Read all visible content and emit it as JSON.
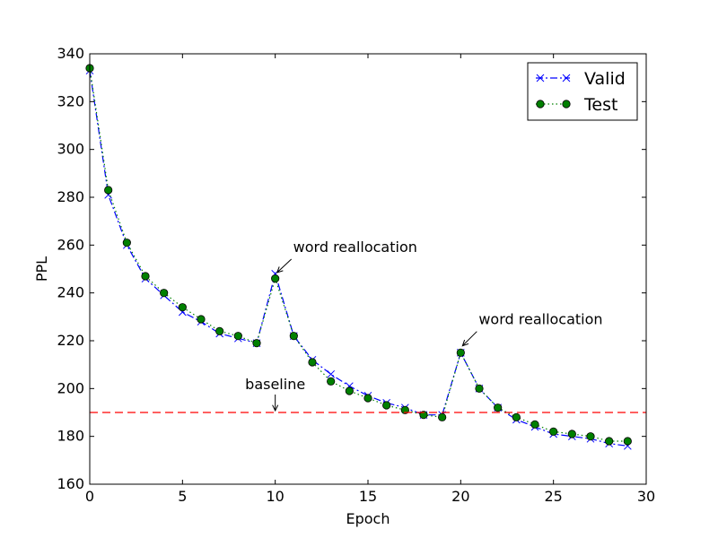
{
  "chart_data": {
    "type": "line",
    "xlabel": "Epoch",
    "ylabel": "PPL",
    "xlim": [
      0,
      30
    ],
    "ylim": [
      160,
      340
    ],
    "xticks": [
      0,
      5,
      10,
      15,
      20,
      25,
      30
    ],
    "yticks": [
      160,
      180,
      200,
      220,
      240,
      260,
      280,
      300,
      320,
      340
    ],
    "grid": false,
    "legend_position": "top-right",
    "series": [
      {
        "name": "Valid",
        "color": "#0000ff",
        "line_style": "dashed",
        "marker": "x",
        "x": [
          0,
          1,
          2,
          3,
          4,
          5,
          6,
          7,
          8,
          9,
          10,
          11,
          12,
          13,
          14,
          15,
          16,
          17,
          18,
          19,
          20,
          21,
          22,
          23,
          24,
          25,
          26,
          27,
          28,
          29
        ],
        "y": [
          333,
          281,
          260,
          246,
          239,
          232,
          228,
          223,
          221,
          219,
          248,
          222,
          212,
          206,
          201,
          197,
          194,
          192,
          189,
          189,
          215,
          200,
          192,
          187,
          184,
          181,
          180,
          179,
          177,
          176
        ]
      },
      {
        "name": "Test",
        "color": "#008000",
        "line_style": "dotted",
        "marker": "o",
        "x": [
          0,
          1,
          2,
          3,
          4,
          5,
          6,
          7,
          8,
          9,
          10,
          11,
          12,
          13,
          14,
          15,
          16,
          17,
          18,
          19,
          20,
          21,
          22,
          23,
          24,
          25,
          26,
          27,
          28,
          29
        ],
        "y": [
          334,
          283,
          261,
          247,
          240,
          234,
          229,
          224,
          222,
          219,
          246,
          222,
          211,
          203,
          199,
          196,
          193,
          191,
          189,
          188,
          215,
          200,
          192,
          188,
          185,
          182,
          181,
          180,
          178,
          178
        ]
      }
    ],
    "reference_line": {
      "y": 190,
      "color": "#ff0000",
      "line_style": "dashed"
    },
    "annotations": [
      {
        "text": "word reallocation",
        "x": 10,
        "y": 247
      },
      {
        "text": "word reallocation",
        "x": 20,
        "y": 216
      },
      {
        "text": "baseline",
        "x": 10,
        "y": 190
      }
    ]
  }
}
